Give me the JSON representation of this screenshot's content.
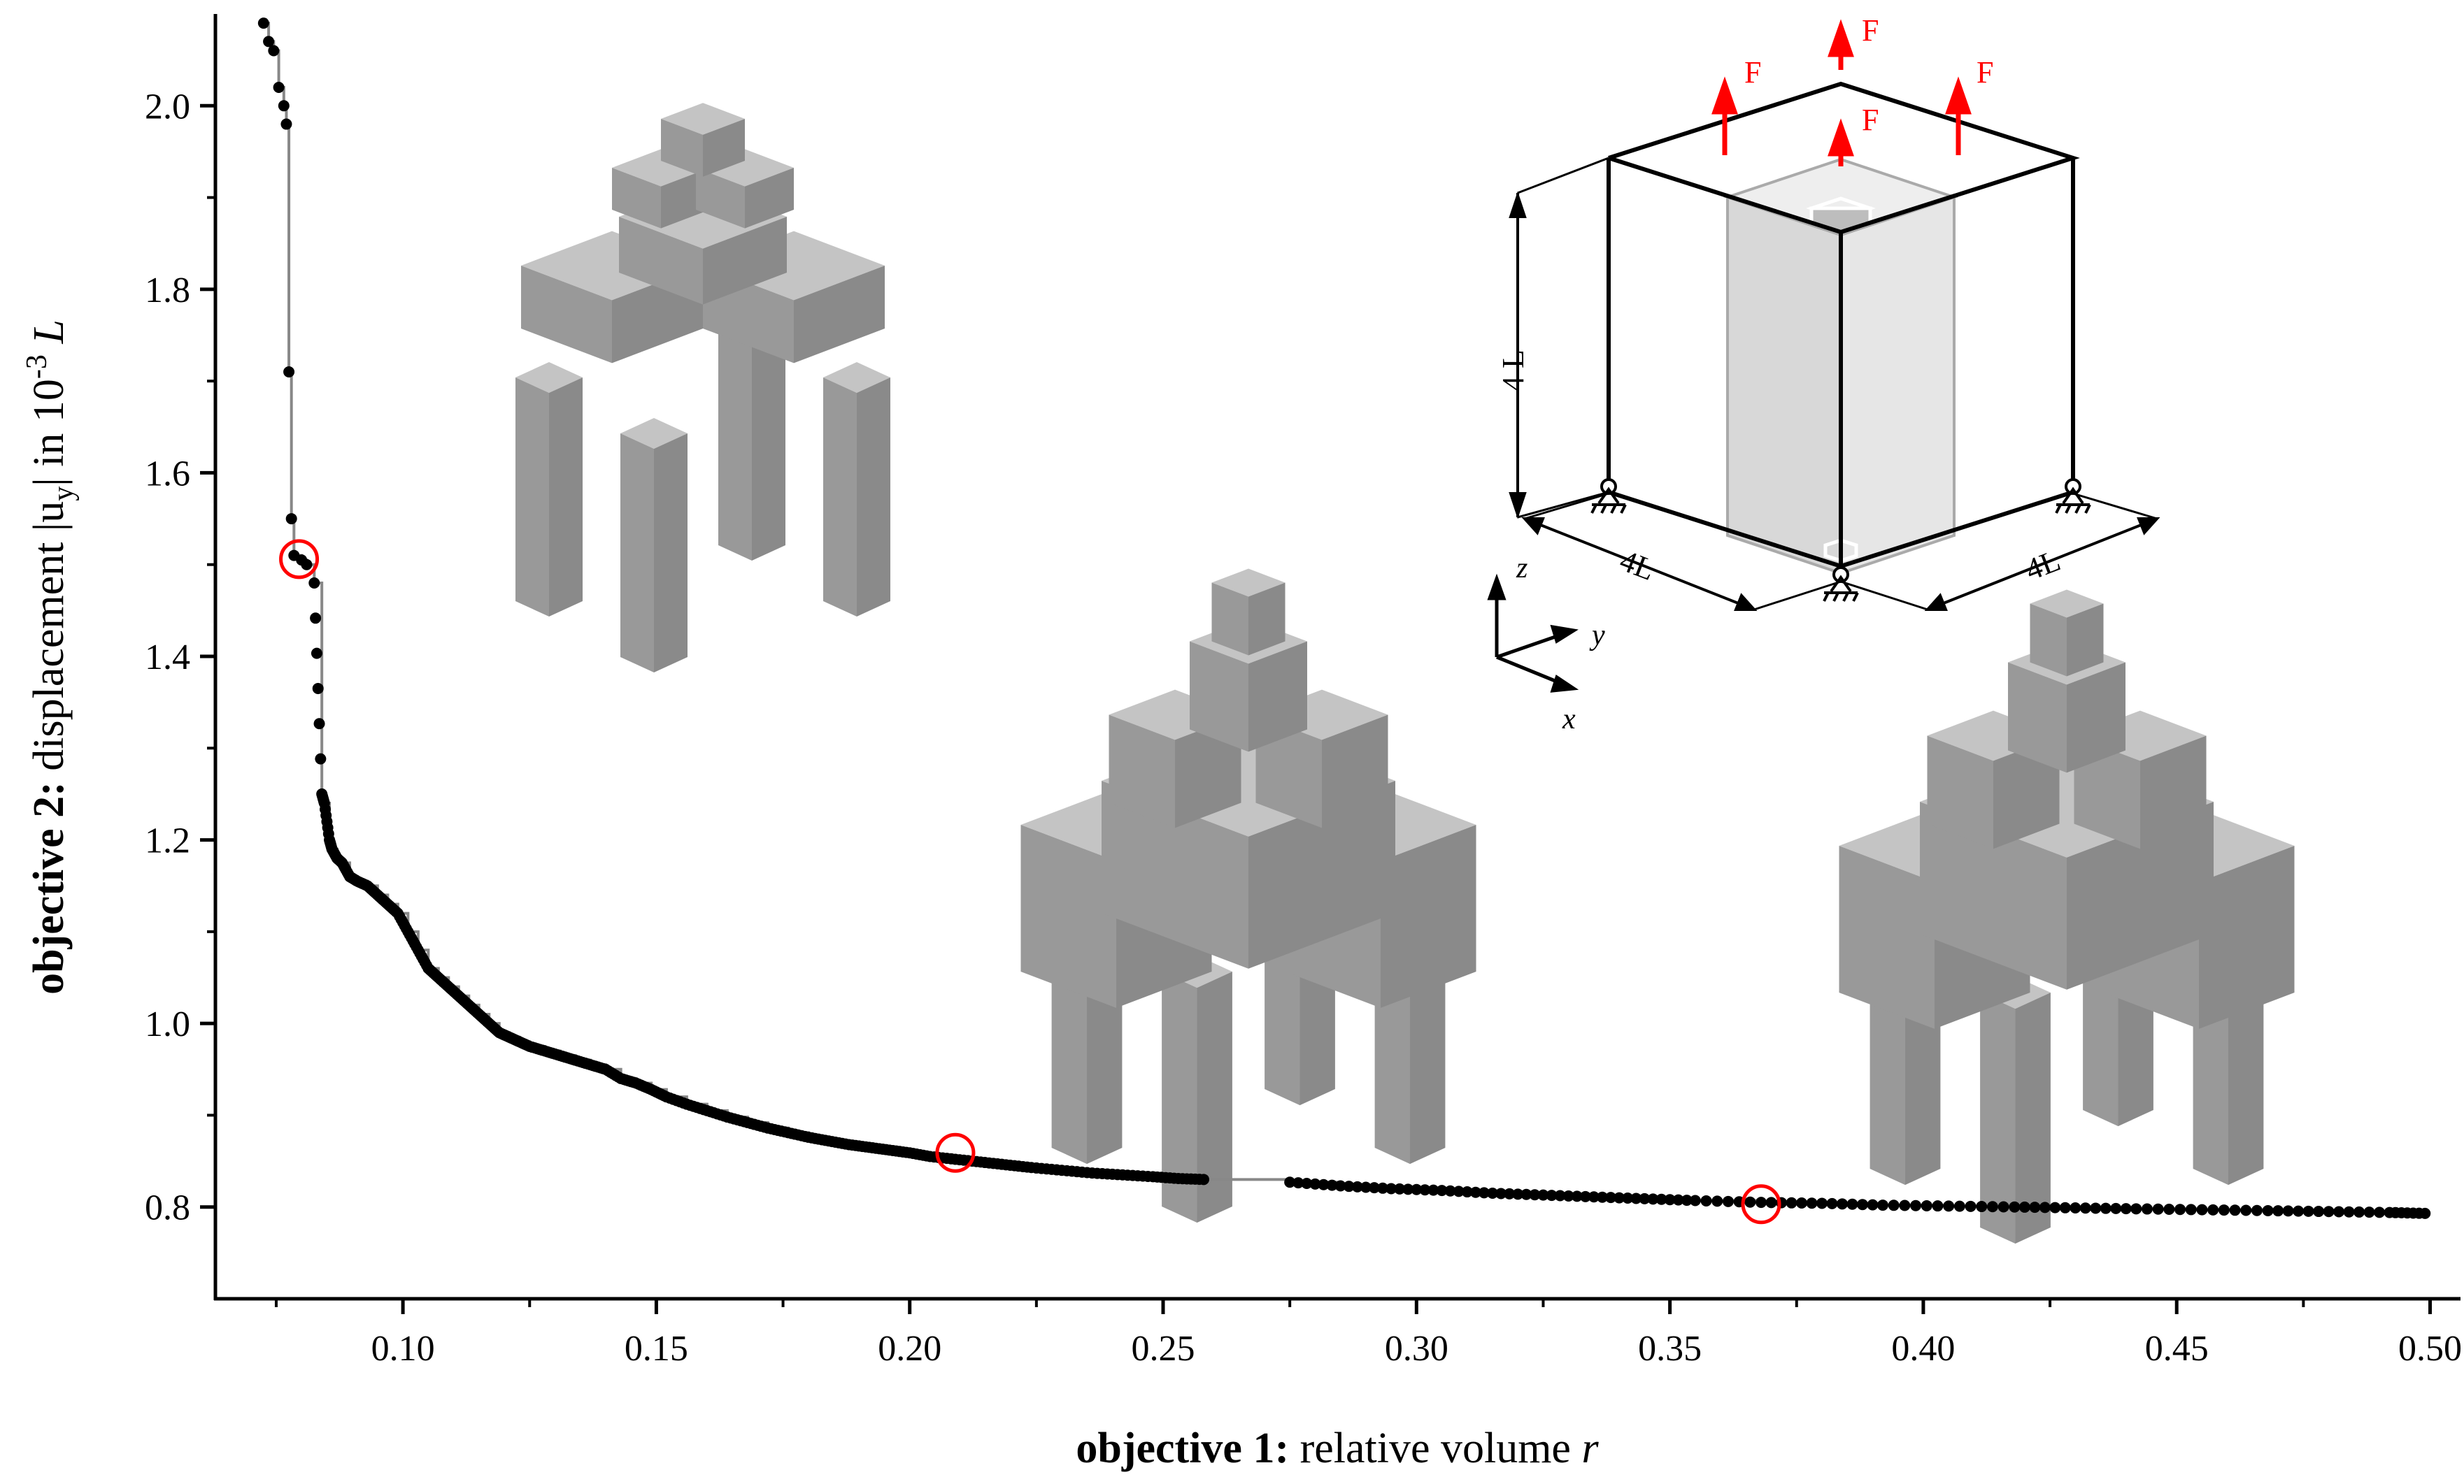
{
  "chart_data": {
    "type": "scatter",
    "title": "",
    "xlabel": {
      "bold": "objective 1:",
      "rest": " relative volume ",
      "var": "r"
    },
    "ylabel": {
      "bold": "objective 2:",
      "rest": " displacement |u",
      "sub": "y",
      "rest2": "| in 10",
      "sup": "-3",
      "var": "L"
    },
    "xlim": [
      0.063,
      0.506
    ],
    "ylim": [
      0.7,
      2.1
    ],
    "xticks": [
      0.1,
      0.15,
      0.2,
      0.25,
      0.3,
      0.35,
      0.4,
      0.45,
      0.5
    ],
    "xtick_labels": [
      "0.10",
      "0.15",
      "0.20",
      "0.25",
      "0.30",
      "0.35",
      "0.40",
      "0.45",
      "0.50"
    ],
    "yticks": [
      0.8,
      1.0,
      1.2,
      1.4,
      1.6,
      1.8,
      2.0
    ],
    "ytick_labels": [
      "0.8",
      "1.0",
      "1.2",
      "1.4",
      "1.6",
      "1.8",
      "2.0"
    ],
    "grid": false,
    "series": [
      {
        "marker": "dot",
        "color": "#000000",
        "line_color": "#888888",
        "step_line": true,
        "x": [
          0.0725,
          0.0735,
          0.0745,
          0.0755,
          0.0765,
          0.077,
          0.0775,
          0.078,
          0.0785,
          0.08,
          0.081,
          0.0825,
          0.084,
          0.0845,
          0.0855,
          0.086,
          0.087,
          0.088,
          0.0895,
          0.091,
          0.093,
          0.095,
          0.097,
          0.099,
          0.101,
          0.103,
          0.105,
          0.107,
          0.109,
          0.111,
          0.113,
          0.115,
          0.117,
          0.119,
          0.121,
          0.123,
          0.125,
          0.128,
          0.131,
          0.134,
          0.137,
          0.14,
          0.143,
          0.146,
          0.149,
          0.152,
          0.156,
          0.16,
          0.164,
          0.168,
          0.172,
          0.176,
          0.18,
          0.184,
          0.188,
          0.192,
          0.196,
          0.2,
          0.204,
          0.209,
          0.214,
          0.219,
          0.224,
          0.23,
          0.236,
          0.242,
          0.248,
          0.253,
          0.258,
          0.275,
          0.285,
          0.295,
          0.305,
          0.315,
          0.325,
          0.335,
          0.345,
          0.355,
          0.368,
          0.38,
          0.392,
          0.405,
          0.418,
          0.43,
          0.442,
          0.455,
          0.468,
          0.48,
          0.492,
          0.499
        ],
        "y": [
          2.09,
          2.07,
          2.06,
          2.02,
          2.0,
          1.98,
          1.71,
          1.55,
          1.51,
          1.505,
          1.5,
          1.48,
          1.25,
          1.24,
          1.2,
          1.19,
          1.18,
          1.175,
          1.16,
          1.155,
          1.15,
          1.14,
          1.13,
          1.12,
          1.1,
          1.08,
          1.06,
          1.05,
          1.04,
          1.03,
          1.02,
          1.01,
          1.0,
          0.99,
          0.985,
          0.98,
          0.975,
          0.97,
          0.965,
          0.96,
          0.955,
          0.95,
          0.94,
          0.935,
          0.928,
          0.92,
          0.912,
          0.905,
          0.898,
          0.892,
          0.886,
          0.881,
          0.876,
          0.872,
          0.868,
          0.865,
          0.862,
          0.859,
          0.855,
          0.852,
          0.849,
          0.846,
          0.843,
          0.84,
          0.837,
          0.835,
          0.833,
          0.831,
          0.83,
          0.827,
          0.823,
          0.82,
          0.818,
          0.815,
          0.813,
          0.811,
          0.809,
          0.807,
          0.805,
          0.804,
          0.802,
          0.801,
          0.8,
          0.799,
          0.798,
          0.797,
          0.796,
          0.795,
          0.794,
          0.793
        ]
      }
    ],
    "highlighted_points": [
      {
        "x": 0.0795,
        "y": 1.506
      },
      {
        "x": 0.209,
        "y": 0.859
      },
      {
        "x": 0.368,
        "y": 0.803
      }
    ],
    "highlight_color": "#ff0000"
  },
  "inset": {
    "force_label": "F",
    "dim_label": "4 L",
    "dim_label_diag": "4L",
    "axes": {
      "x": "x",
      "y": "y",
      "z": "z"
    },
    "colors": {
      "force": "#ff0000",
      "box_edge": "#000000",
      "shade": "#d9d9d9"
    }
  },
  "structures_color": "#999999"
}
